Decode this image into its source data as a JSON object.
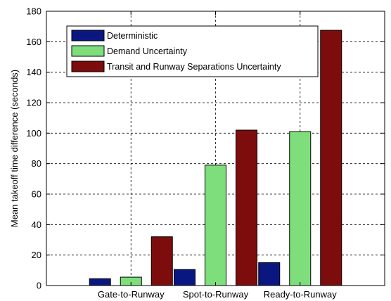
{
  "chart_data": {
    "type": "bar",
    "title": "",
    "xlabel": "",
    "ylabel": "Mean takeoff time difference (seconds)",
    "ylim": [
      0,
      180
    ],
    "yticks": [
      0,
      20,
      40,
      60,
      80,
      100,
      120,
      140,
      160,
      180
    ],
    "categories": [
      "Gate-to-Runway",
      "Spot-to-Runway",
      "Ready-to-Runway"
    ],
    "series": [
      {
        "name": "Deterministic",
        "color": "#0b1780",
        "values": [
          4.5,
          10.5,
          15
        ]
      },
      {
        "name": "Demand Uncertainty",
        "color": "#7ede7c",
        "values": [
          5.5,
          79,
          101
        ]
      },
      {
        "name": "Transit and Runway Separations Uncertainty",
        "color": "#7c0d0c",
        "values": [
          32,
          102,
          167.5
        ]
      }
    ],
    "grid": true,
    "legend_position": "top-left"
  }
}
